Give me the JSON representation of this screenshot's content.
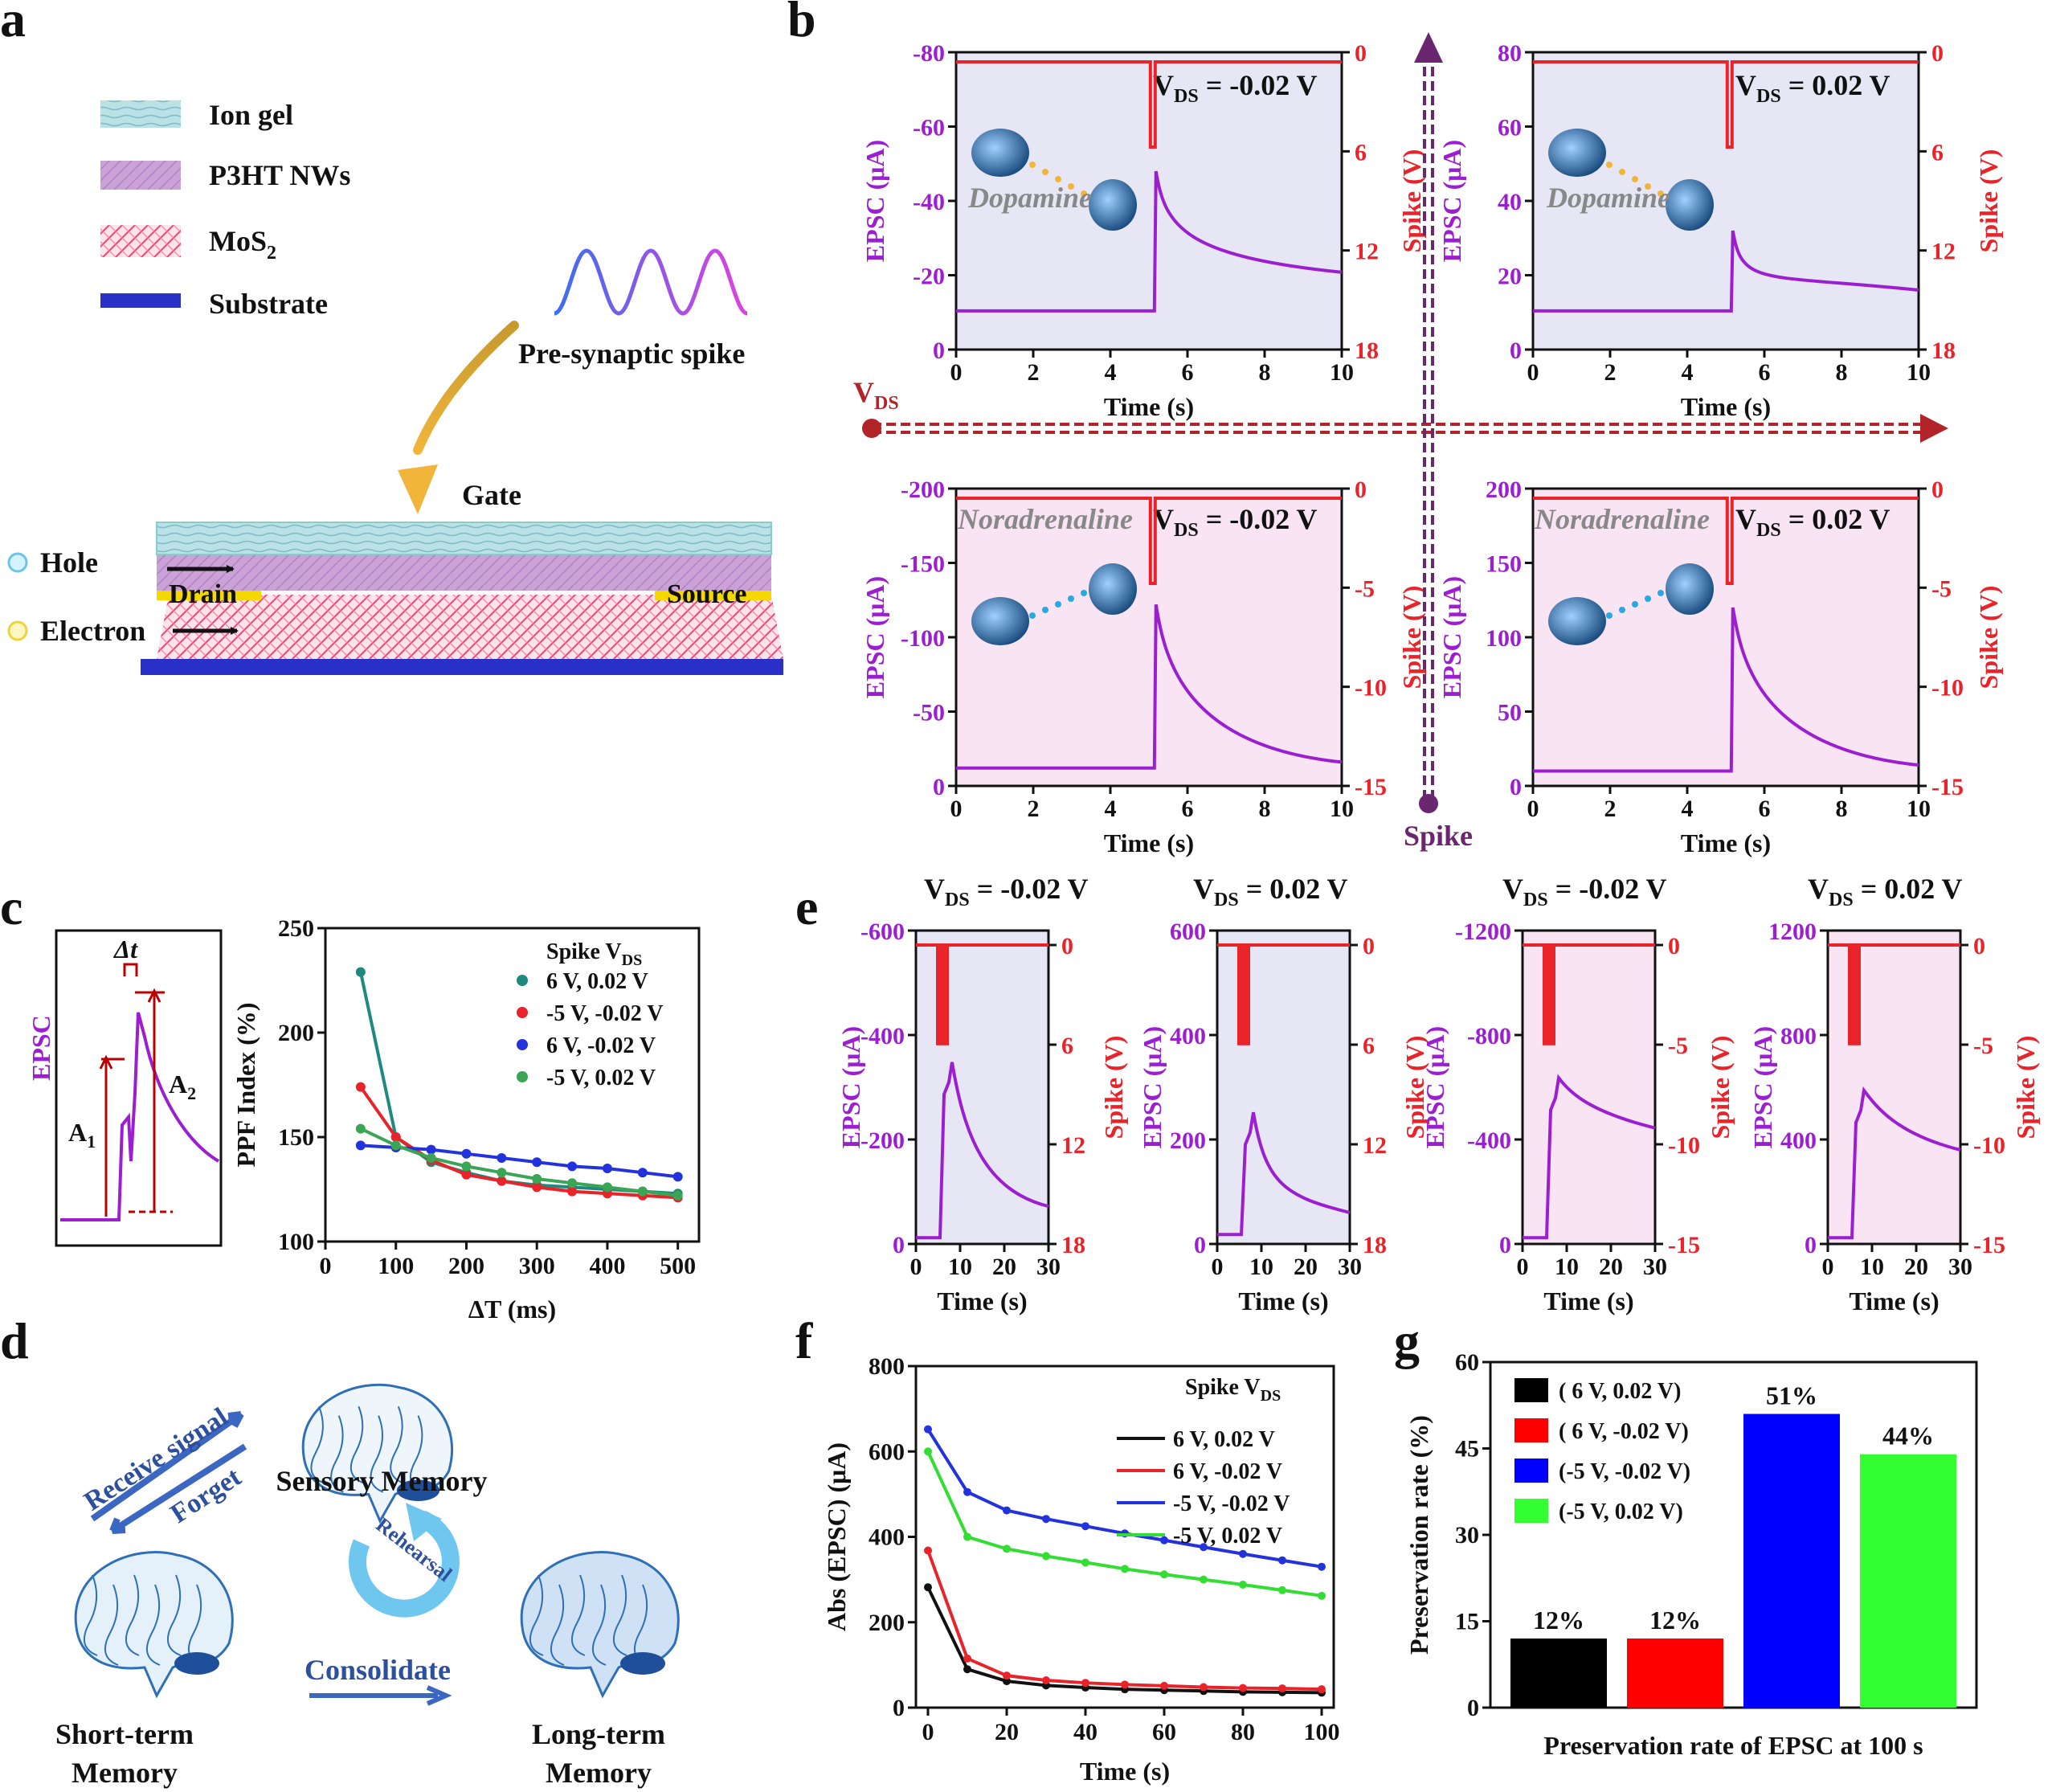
{
  "panel_labels": {
    "a": "a",
    "b": "b",
    "c": "c",
    "d": "d",
    "e": "e",
    "f": "f",
    "g": "g"
  },
  "panel_a": {
    "legend": [
      {
        "label": "Ion gel",
        "color": "#a8d8e0"
      },
      {
        "label": "P3HT NWs",
        "color": "#c79ad0"
      },
      {
        "label": "MoS",
        "sub": "2",
        "color": "#e86b8a"
      },
      {
        "label": "Substrate",
        "color": "#2a2fc8"
      }
    ],
    "spike_label": "Pre-synaptic spike",
    "gate": "Gate",
    "drain": "Drain",
    "source": "Source",
    "hole": "Hole",
    "electron": "Electron"
  },
  "panel_b": {
    "axis_vds": "V",
    "axis_vds_sub": "DS",
    "axis_spike": "Spike",
    "xlabel": "Time (s)",
    "ylabel_left": "EPSC (μA)",
    "ylabel_right": "Spike (V)",
    "x_ticks": [
      "0",
      "2",
      "4",
      "6",
      "8",
      "10"
    ],
    "neuro_top": "Dopamine",
    "neuro_bottom": "Noradrenaline",
    "plots": [
      {
        "vds": " = -0.02 V",
        "left_ticks": [
          "-80",
          "-60",
          "-40",
          "-20",
          "0"
        ],
        "right_ticks": [
          "0",
          "6",
          "12",
          "18"
        ]
      },
      {
        "vds": " = 0.02 V",
        "left_ticks": [
          "80",
          "60",
          "40",
          "20",
          "0"
        ],
        "right_ticks": [
          "0",
          "6",
          "12",
          "18"
        ]
      },
      {
        "vds": " = -0.02 V",
        "left_ticks": [
          "-200",
          "-150",
          "-100",
          "-50",
          "0"
        ],
        "right_ticks": [
          "0",
          "-5",
          "-10",
          "-15"
        ]
      },
      {
        "vds": " = 0.02 V",
        "left_ticks": [
          "200",
          "150",
          "100",
          "50",
          "0"
        ],
        "right_ticks": [
          "0",
          "-5",
          "-10",
          "-15"
        ]
      }
    ]
  },
  "panel_c": {
    "inset_epsc": "EPSC",
    "inset_dt": "Δt",
    "inset_a1": "A",
    "inset_a2": "A",
    "xlabel": "ΔT (ms)",
    "ylabel": "PPF Index (%)",
    "legend_title_spike": "Spike",
    "legend_title_vds": "V",
    "legend_title_vds_sub": "DS",
    "x_ticks": [
      "0",
      "100",
      "200",
      "300",
      "400",
      "500"
    ],
    "y_ticks": [
      "100",
      "150",
      "200",
      "250"
    ],
    "chart_data": {
      "type": "scatter",
      "xlabel": "ΔT (ms)",
      "ylabel": "PPF Index (%)",
      "xlim": [
        0,
        530
      ],
      "ylim": [
        100,
        250
      ],
      "x": [
        50,
        100,
        150,
        200,
        250,
        300,
        350,
        400,
        450,
        500
      ],
      "series": [
        {
          "name": "6 V,  0.02 V",
          "color": "#1e8a7e",
          "values": [
            229,
            150,
            138,
            133,
            129,
            127,
            126,
            125,
            124,
            123
          ]
        },
        {
          "name": "-5 V,  -0.02 V",
          "color": "#e8232a",
          "values": [
            174,
            150,
            139,
            132,
            129,
            126,
            124,
            123,
            122,
            121
          ]
        },
        {
          "name": "6 V,  -0.02 V",
          "color": "#2233dd",
          "values": [
            146,
            145,
            144,
            142,
            140,
            138,
            136,
            135,
            133,
            131
          ]
        },
        {
          "name": "-5 V,  0.02 V",
          "color": "#3aa655",
          "values": [
            154,
            146,
            140,
            136,
            133,
            130,
            128,
            126,
            124,
            122
          ]
        }
      ]
    }
  },
  "panel_d": {
    "receive": "Receive signal",
    "forget": "Forget",
    "sensory": "Sensory Memory",
    "rehearsal": "Rehearsal",
    "consolidate": "Consolidate",
    "short_1": "Short-term",
    "short_2": "Memory",
    "long_1": "Long-term",
    "long_2": "Memory"
  },
  "panel_e": {
    "xlabel": "Time (s)",
    "ylabel_left": "EPSC (μA)",
    "ylabel_right": "Spike (V)",
    "x_ticks": [
      "0",
      "10",
      "20",
      "30"
    ],
    "plots": [
      {
        "vds": " = -0.02 V",
        "left_ticks": [
          "-600",
          "-400",
          "-200",
          "0"
        ],
        "right_ticks": [
          "0",
          "6",
          "12",
          "18"
        ]
      },
      {
        "vds": " = 0.02 V",
        "left_ticks": [
          "600",
          "400",
          "200",
          "0"
        ],
        "right_ticks": [
          "0",
          "6",
          "12",
          "18"
        ]
      },
      {
        "vds": " = -0.02 V",
        "left_ticks": [
          "-1200",
          "-800",
          "-400",
          "0"
        ],
        "right_ticks": [
          "0",
          "-5",
          "-10",
          "-15"
        ]
      },
      {
        "vds": " = 0.02 V",
        "left_ticks": [
          "1200",
          "800",
          "400",
          "0"
        ],
        "right_ticks": [
          "0",
          "-5",
          "-10",
          "-15"
        ]
      }
    ]
  },
  "panel_f": {
    "chart_data": {
      "type": "line",
      "xlabel": "Time (s)",
      "ylabel": "Abs (EPSC) (μA)",
      "xlim": [
        0,
        100
      ],
      "ylim": [
        0,
        800
      ],
      "x_ticks": [
        "0",
        "20",
        "40",
        "60",
        "80",
        "100"
      ],
      "y_ticks": [
        "0",
        "200",
        "400",
        "600",
        "800"
      ],
      "legend_title_spike": "Spike",
      "legend_title_vds": "V",
      "legend_title_vds_sub": "DS",
      "x": [
        0,
        10,
        20,
        30,
        40,
        50,
        60,
        70,
        80,
        90,
        100
      ],
      "series": [
        {
          "name": "6 V,   0.02 V",
          "color": "#111111",
          "values": [
            282,
            90,
            62,
            52,
            47,
            43,
            41,
            39,
            37,
            36,
            35
          ]
        },
        {
          "name": "6 V,  -0.02 V",
          "color": "#e8232a",
          "values": [
            368,
            115,
            75,
            64,
            58,
            54,
            51,
            48,
            46,
            45,
            43
          ]
        },
        {
          "name": "-5 V,  -0.02 V",
          "color": "#2233dd",
          "values": [
            652,
            505,
            462,
            442,
            425,
            408,
            392,
            376,
            360,
            345,
            330
          ]
        },
        {
          "name": "-5 V,   0.02 V",
          "color": "#33dd33",
          "values": [
            600,
            400,
            372,
            355,
            340,
            325,
            312,
            300,
            288,
            275,
            262
          ]
        }
      ]
    }
  },
  "panel_g": {
    "chart_data": {
      "type": "bar",
      "title": "",
      "xlabel": "Preservation rate of EPSC at 100 s",
      "ylabel": "Preservation rate (%)",
      "ylim": [
        0,
        60
      ],
      "y_ticks": [
        "0",
        "15",
        "30",
        "45",
        "60"
      ],
      "categories": [
        "( 6 V,  0.02 V)",
        "( 6 V, -0.02 V)",
        "(-5 V, -0.02 V)",
        "(-5 V,  0.02 V)"
      ],
      "values": [
        12,
        12,
        51,
        44
      ],
      "value_labels": [
        "12%",
        "12%",
        "51%",
        "44%"
      ],
      "colors": [
        "#000000",
        "#ff0000",
        "#0000ff",
        "#33ff33"
      ]
    }
  }
}
